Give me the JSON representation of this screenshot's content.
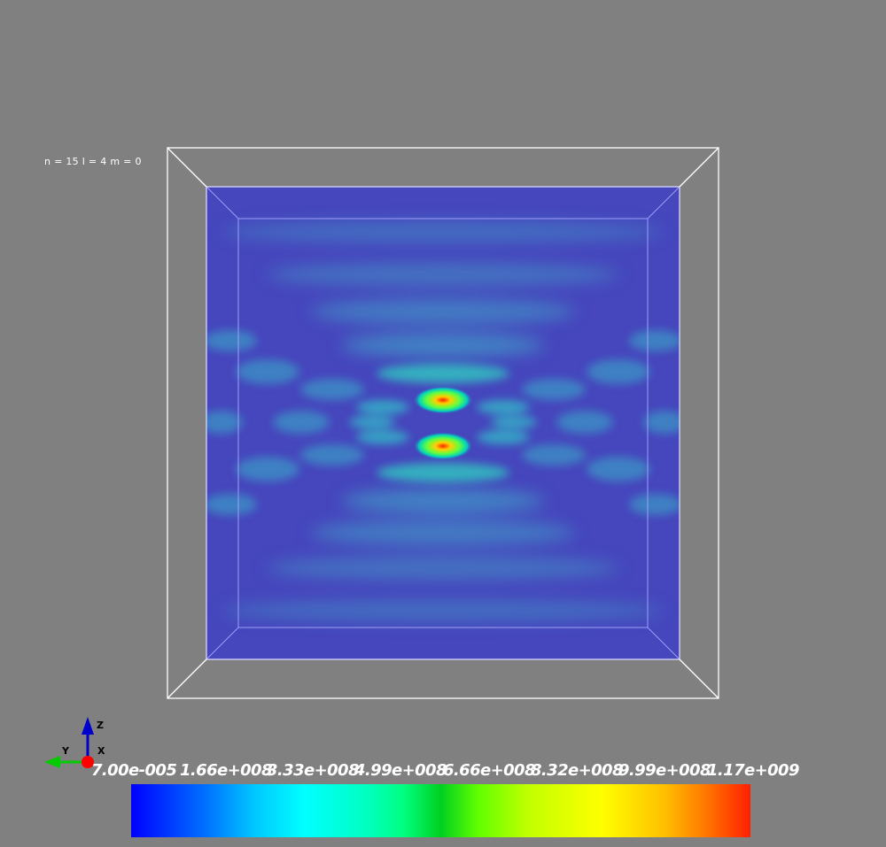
{
  "overlay": {
    "quantum_numbers": "n = 15 l = 4 m = 0"
  },
  "orientation_axes": {
    "labels": {
      "z": "Z",
      "y": "Y",
      "x": "X"
    },
    "colors": {
      "z": "#0000cc",
      "y": "#00cc00",
      "x": "#ff0000"
    }
  },
  "colorbar": {
    "tick_labels": [
      "7.00e-005",
      "1.66e+008",
      "3.33e+008",
      "4.99e+008",
      "6.66e+008",
      "8.32e+008",
      "9.99e+008",
      "1.17e+009"
    ],
    "colors": {
      "low": "#0000ff",
      "high": "#ff2000"
    }
  },
  "scene": {
    "background_color": "#808080",
    "slice_base_color": "#4646bd",
    "outline_color": "#ffffff"
  }
}
